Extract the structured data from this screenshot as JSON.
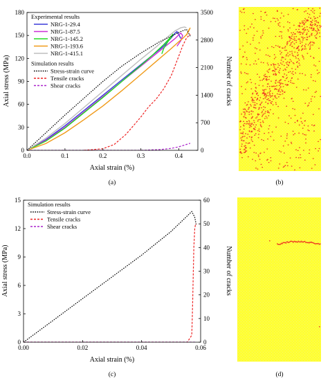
{
  "chart_data": [
    {
      "type": "line",
      "panel_label": "(a)",
      "xlabel": "Axial strain (%)",
      "ylabel": "Axial stress (MPa)",
      "y2label": "Number of cracks",
      "xlim": [
        0,
        0.45
      ],
      "ylim": [
        0,
        180
      ],
      "y2lim": [
        0,
        3500
      ],
      "xticks": [
        "0.0",
        "0.1",
        "0.2",
        "0.3",
        "0.4"
      ],
      "xtick_values": [
        0,
        0.1,
        0.2,
        0.3,
        0.4
      ],
      "yticks": [
        "0",
        "30",
        "60",
        "90",
        "120",
        "150",
        "180"
      ],
      "ytick_values": [
        0,
        30,
        60,
        90,
        120,
        150,
        180
      ],
      "y2ticks": [
        "0",
        "700",
        "1400",
        "2100",
        "2800",
        "3500"
      ],
      "y2tick_values": [
        0,
        700,
        1400,
        2100,
        2800,
        3500
      ],
      "legend_groups": [
        {
          "title": "Experimental results",
          "entries": [
            "NRG-1-29.4",
            "NRG-1-87.5",
            "NRG-1-145.2",
            "NRG-1-193.6",
            "NRG-1-415.1"
          ]
        },
        {
          "title": "Simulation results",
          "entries": [
            "Stress-strain curve",
            "Tensile cracks",
            "Shear cracks"
          ]
        }
      ],
      "legend_position": "top-left",
      "series": [
        {
          "name": "NRG-1-29.4",
          "axis": "left",
          "color": "#3a3ad8",
          "dash": "solid",
          "x": [
            0,
            0.05,
            0.1,
            0.15,
            0.2,
            0.25,
            0.3,
            0.33,
            0.36,
            0.38,
            0.39,
            0.395,
            0.4,
            0.405
          ],
          "y": [
            0,
            14,
            32,
            52,
            72,
            92,
            112,
            124,
            136,
            147,
            153,
            155,
            151,
            146
          ]
        },
        {
          "name": "NRG-1-87.5",
          "axis": "left",
          "color": "#cc2fd6",
          "dash": "solid",
          "x": [
            0,
            0.05,
            0.1,
            0.15,
            0.2,
            0.25,
            0.3,
            0.34,
            0.37,
            0.39,
            0.4,
            0.405,
            0.41,
            0.405,
            0.395
          ],
          "y": [
            0,
            13,
            30,
            50,
            70,
            90,
            110,
            126,
            138,
            146,
            151,
            153,
            150,
            143,
            136
          ]
        },
        {
          "name": "NRG-1-145.2",
          "axis": "left",
          "color": "#22dd22",
          "dash": "solid",
          "x": [
            0,
            0.05,
            0.1,
            0.15,
            0.2,
            0.25,
            0.3,
            0.33,
            0.36,
            0.375,
            0.385,
            0.38,
            0.37,
            0.36,
            0.355
          ],
          "y": [
            0,
            12,
            29,
            49,
            69,
            90,
            111,
            124,
            138,
            146,
            152,
            148,
            141,
            133,
            126
          ]
        },
        {
          "name": "NRG-1-193.6",
          "axis": "left",
          "color": "#f09a18",
          "dash": "solid",
          "x": [
            0,
            0.05,
            0.1,
            0.15,
            0.2,
            0.25,
            0.3,
            0.34,
            0.38,
            0.4,
            0.41,
            0.42,
            0.425,
            0.43,
            0.425,
            0.42
          ],
          "y": [
            0,
            9,
            23,
            40,
            58,
            78,
            99,
            116,
            133,
            142,
            146,
            151,
            155,
            160,
            156,
            150
          ]
        },
        {
          "name": "NRG-1-415.1",
          "axis": "left",
          "color": "#bdbdbd",
          "dash": "solid",
          "x": [
            0,
            0.05,
            0.1,
            0.15,
            0.2,
            0.25,
            0.3,
            0.34,
            0.37,
            0.39,
            0.405,
            0.415,
            0.42
          ],
          "y": [
            0,
            16,
            35,
            56,
            77,
            98,
            119,
            135,
            148,
            156,
            160,
            161,
            160
          ]
        },
        {
          "name": "Stress-strain curve",
          "axis": "left",
          "color": "#000000",
          "dash": "dotted",
          "x": [
            0,
            0.05,
            0.1,
            0.15,
            0.2,
            0.25,
            0.3,
            0.35,
            0.38,
            0.4,
            0.41,
            0.42,
            0.43
          ],
          "y": [
            0,
            23,
            46,
            68,
            90,
            110,
            127,
            142,
            149,
            154,
            156,
            158,
            149
          ]
        },
        {
          "name": "Tensile cracks",
          "axis": "right",
          "color": "#ee2222",
          "dash": "dashed",
          "x": [
            0.15,
            0.2,
            0.23,
            0.26,
            0.28,
            0.3,
            0.32,
            0.34,
            0.36,
            0.38,
            0.39,
            0.4,
            0.41,
            0.42,
            0.43
          ],
          "y": [
            0,
            40,
            150,
            400,
            620,
            850,
            1100,
            1300,
            1560,
            1900,
            2150,
            2400,
            2650,
            2850,
            2950
          ]
        },
        {
          "name": "Shear cracks",
          "axis": "right",
          "color": "#aa22cc",
          "dash": "dashed",
          "x": [
            0,
            0.3,
            0.35,
            0.38,
            0.4,
            0.42,
            0.43
          ],
          "y": [
            0,
            0,
            20,
            50,
            90,
            150,
            180
          ]
        }
      ]
    },
    {
      "type": "line",
      "panel_label": "(c)",
      "xlabel": "Axial strain (%)",
      "ylabel": "Axial stress (MPa)",
      "y2label": "Number of cracks",
      "xlim": [
        0,
        0.06
      ],
      "ylim": [
        0,
        15
      ],
      "y2lim": [
        0,
        60
      ],
      "xticks": [
        "0.00",
        "0.02",
        "0.04",
        "0.06"
      ],
      "xtick_values": [
        0,
        0.02,
        0.04,
        0.06
      ],
      "yticks": [
        "0",
        "3",
        "6",
        "9",
        "12",
        "15"
      ],
      "ytick_values": [
        0,
        3,
        6,
        9,
        12,
        15
      ],
      "y2ticks": [
        "0",
        "10",
        "20",
        "30",
        "40",
        "50",
        "60"
      ],
      "y2tick_values": [
        0,
        10,
        20,
        30,
        40,
        50,
        60
      ],
      "legend_groups": [
        {
          "title": "Simulation results",
          "entries": [
            "Stress-strain curve",
            "Tensile cracks",
            "Shear cracks"
          ]
        }
      ],
      "legend_position": "top-left",
      "series": [
        {
          "name": "Stress-strain curve",
          "axis": "left",
          "color": "#000000",
          "dash": "dotted",
          "x": [
            0,
            0.01,
            0.02,
            0.03,
            0.04,
            0.05,
            0.055,
            0.057,
            0.058,
            0.0585
          ],
          "y": [
            0,
            2.3,
            4.6,
            6.9,
            9.2,
            11.7,
            13.2,
            13.8,
            13.2,
            12.4
          ]
        },
        {
          "name": "Tensile cracks",
          "axis": "right",
          "color": "#ee2222",
          "dash": "dashed",
          "x": [
            0,
            0.0555,
            0.056,
            0.0565,
            0.057,
            0.0572,
            0.0575,
            0.0577,
            0.058,
            0.0583,
            0.0585
          ],
          "y": [
            0,
            0,
            1,
            2,
            3,
            12,
            28,
            40,
            48,
            50,
            50
          ]
        },
        {
          "name": "Shear cracks",
          "axis": "right",
          "color": "#aa22cc",
          "dash": "dashed",
          "x": [
            0,
            0.0585
          ],
          "y": [
            0,
            0
          ]
        }
      ]
    }
  ],
  "images": [
    {
      "panel_label": "(b)",
      "background": "#ffff33",
      "crack_color": "#ee3322",
      "description_free": true
    },
    {
      "panel_label": "(d)",
      "background": "#ffff33",
      "crack_color": "#ee3322",
      "description_free": true
    }
  ]
}
